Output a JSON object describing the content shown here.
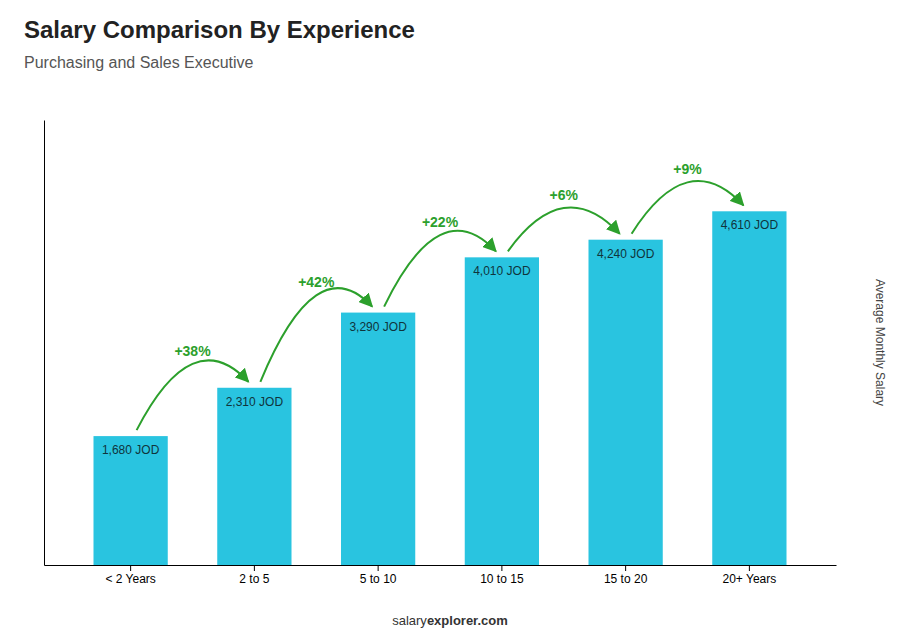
{
  "chart_data": {
    "type": "bar",
    "title": "Salary Comparison By Experience",
    "subtitle": "Purchasing and Sales Executive",
    "ylabel": "Average Monthly Salary",
    "footer": [
      "salary",
      "explorer.com"
    ],
    "categories": [
      "< 2 Years",
      "2 to 5",
      "5 to 10",
      "10 to 15",
      "15 to 20",
      "20+ Years"
    ],
    "values": [
      1680,
      2310,
      3290,
      4010,
      4240,
      4610
    ],
    "value_labels": [
      "1,680 JOD",
      "2,310 JOD",
      "3,290 JOD",
      "4,010 JOD",
      "4,240 JOD",
      "4,610 JOD"
    ],
    "data_labels": true,
    "changes": [
      38,
      42,
      22,
      6,
      9
    ],
    "change_labels": [
      "+38%",
      "+42%",
      "+22%",
      "+6%",
      "+9%"
    ],
    "color": "#29C4E0",
    "ylim": [
      0,
      5800
    ],
    "tick_labels": "x",
    "grid": false
  }
}
